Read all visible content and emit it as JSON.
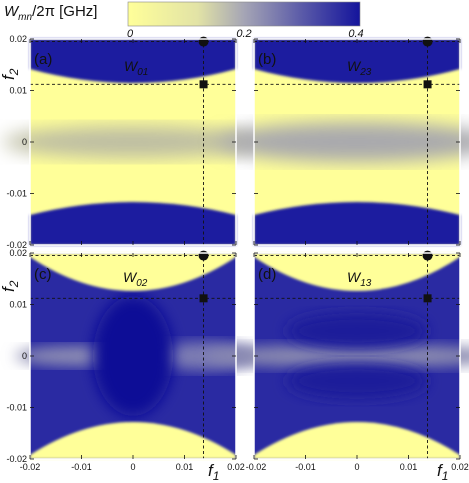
{
  "colors": {
    "low": "#ffff99",
    "mid": "#a5a5b5",
    "high": "#14149c",
    "ink": "#111111",
    "frame": "#ffffff"
  },
  "colorbar": {
    "title_main": "W",
    "title_sub": "mn",
    "title_rest": "/2π [GHz]",
    "tick_labels": [
      "0",
      "0.2",
      "0.4"
    ],
    "range": [
      0,
      0.4
    ]
  },
  "axes": {
    "x_label": "f",
    "x_label_sub": "1",
    "y_label": "f",
    "y_label_sub": "2",
    "x_tick_labels": [
      "-0.02",
      "-0.01",
      "0",
      "0.01",
      "0.02"
    ],
    "y_tick_labels": [
      "0.02",
      "0.01",
      "0",
      "-0.01",
      "-0.02"
    ]
  },
  "chart_data": [
    {
      "type": "heatmap",
      "panel": "(a)",
      "label_main": "W",
      "label_sub": "01",
      "xlim": [
        -0.02,
        0.02
      ],
      "ylim": [
        -0.02,
        0.02
      ],
      "vmin": 0,
      "vmax": 0.4,
      "dashed_lines": {
        "vertical_x": 0.0137,
        "horizontal_y_top": 0.0195,
        "horizontal_y_mid": 0.0112
      },
      "markers": [
        {
          "shape": "circle",
          "x": 0.0137,
          "y": 0.0195
        },
        {
          "shape": "square",
          "x": 0.0137,
          "y": 0.0112
        }
      ]
    },
    {
      "type": "heatmap",
      "panel": "(b)",
      "label_main": "W",
      "label_sub": "23",
      "xlim": [
        -0.02,
        0.02
      ],
      "ylim": [
        -0.02,
        0.02
      ],
      "vmin": 0,
      "vmax": 0.4,
      "dashed_lines": {
        "vertical_x": 0.0137,
        "horizontal_y_top": 0.0195,
        "horizontal_y_mid": 0.0112
      },
      "markers": [
        {
          "shape": "circle",
          "x": 0.0137,
          "y": 0.0195
        },
        {
          "shape": "square",
          "x": 0.0137,
          "y": 0.0112
        }
      ]
    },
    {
      "type": "heatmap",
      "panel": "(c)",
      "label_main": "W",
      "label_sub": "02",
      "xlim": [
        -0.02,
        0.02
      ],
      "ylim": [
        -0.02,
        0.02
      ],
      "vmin": 0,
      "vmax": 0.4,
      "dashed_lines": {
        "vertical_x": 0.0137,
        "horizontal_y_top": 0.0195,
        "horizontal_y_mid": 0.0112
      },
      "markers": [
        {
          "shape": "circle",
          "x": 0.0137,
          "y": 0.0195
        },
        {
          "shape": "square",
          "x": 0.0137,
          "y": 0.0112
        }
      ]
    },
    {
      "type": "heatmap",
      "panel": "(d)",
      "label_main": "W",
      "label_sub": "13",
      "xlim": [
        -0.02,
        0.02
      ],
      "ylim": [
        -0.02,
        0.02
      ],
      "vmin": 0,
      "vmax": 0.4,
      "dashed_lines": {
        "vertical_x": 0.0137,
        "horizontal_y_top": 0.0195,
        "horizontal_y_mid": 0.0112
      },
      "markers": [
        {
          "shape": "circle",
          "x": 0.0137,
          "y": 0.0195
        },
        {
          "shape": "square",
          "x": 0.0137,
          "y": 0.0112
        }
      ]
    }
  ]
}
